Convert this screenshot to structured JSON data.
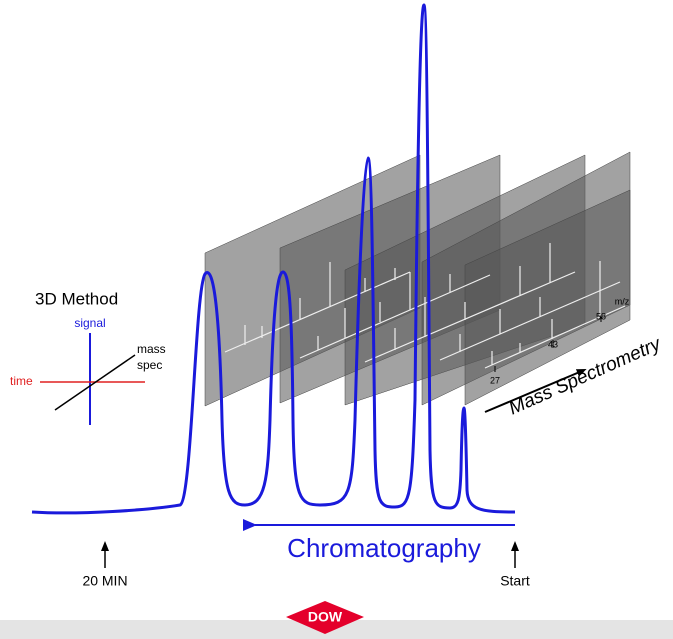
{
  "legend": {
    "title": "3D Method",
    "signal": "signal",
    "mass": "mass",
    "spec": "spec",
    "time": "time"
  },
  "axes": {
    "mass_spectrometry": "Mass Spectrometry",
    "chromatography": "Chromatography",
    "end_marker": "20 MIN",
    "start_marker": "Start"
  },
  "spectrum": {
    "unit": "m/z",
    "ticks": [
      "58",
      "43",
      "27"
    ]
  },
  "footer": {
    "logo": "DOW"
  }
}
